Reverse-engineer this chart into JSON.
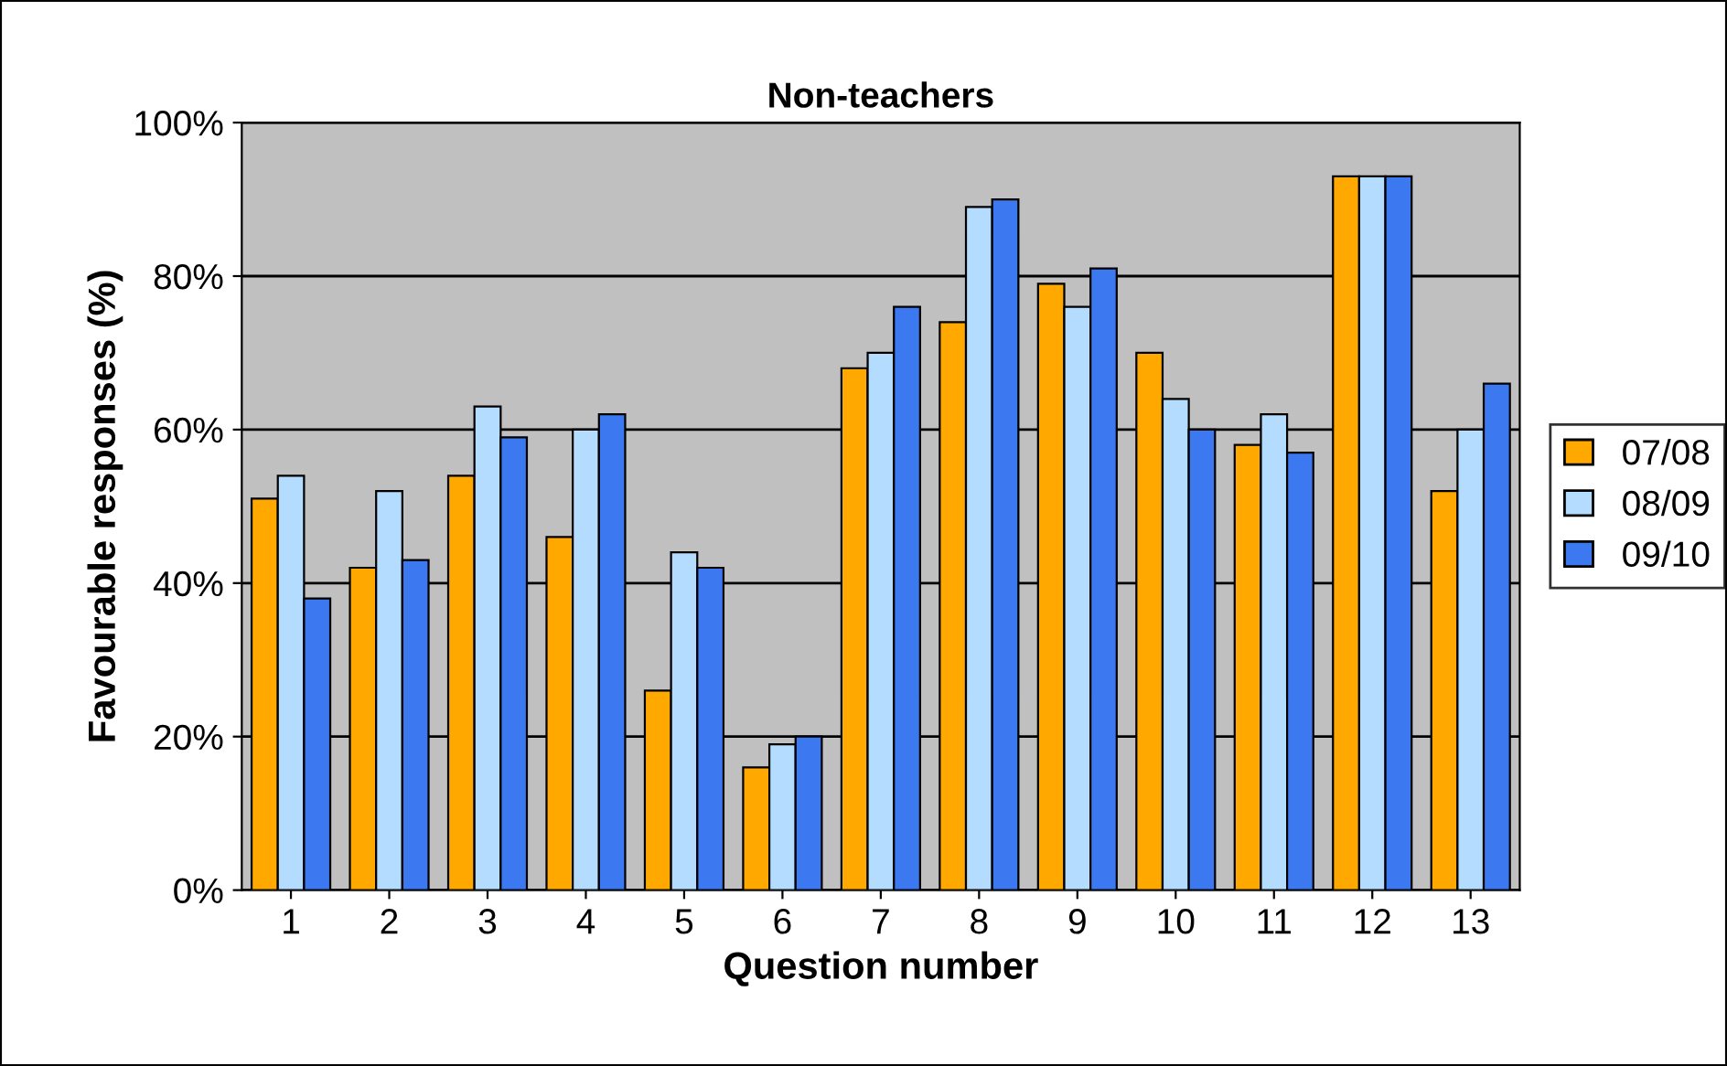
{
  "chart_data": {
    "type": "bar",
    "title": "Non-teachers",
    "xlabel": "Question number",
    "ylabel": "Favourable responses (%)",
    "categories": [
      "1",
      "2",
      "3",
      "4",
      "5",
      "6",
      "7",
      "8",
      "9",
      "10",
      "11",
      "12",
      "13"
    ],
    "series": [
      {
        "name": "07/08",
        "color": "#ffa800",
        "values": [
          51,
          42,
          54,
          46,
          26,
          16,
          68,
          74,
          79,
          70,
          58,
          93,
          52
        ]
      },
      {
        "name": "08/09",
        "color": "#b4dcff",
        "values": [
          54,
          52,
          63,
          60,
          44,
          19,
          70,
          89,
          76,
          64,
          62,
          93,
          60
        ]
      },
      {
        "name": "09/10",
        "color": "#3c78f0",
        "values": [
          38,
          43,
          59,
          62,
          42,
          20,
          76,
          90,
          81,
          60,
          57,
          93,
          66
        ]
      }
    ],
    "ylim": [
      0,
      100
    ],
    "yticks": [
      {
        "value": 0,
        "label": "0%"
      },
      {
        "value": 20,
        "label": "20%"
      },
      {
        "value": 40,
        "label": "40%"
      },
      {
        "value": 60,
        "label": "60%"
      },
      {
        "value": 80,
        "label": "80%"
      },
      {
        "value": 100,
        "label": "100%"
      }
    ],
    "grid": "y",
    "legend": "right"
  }
}
